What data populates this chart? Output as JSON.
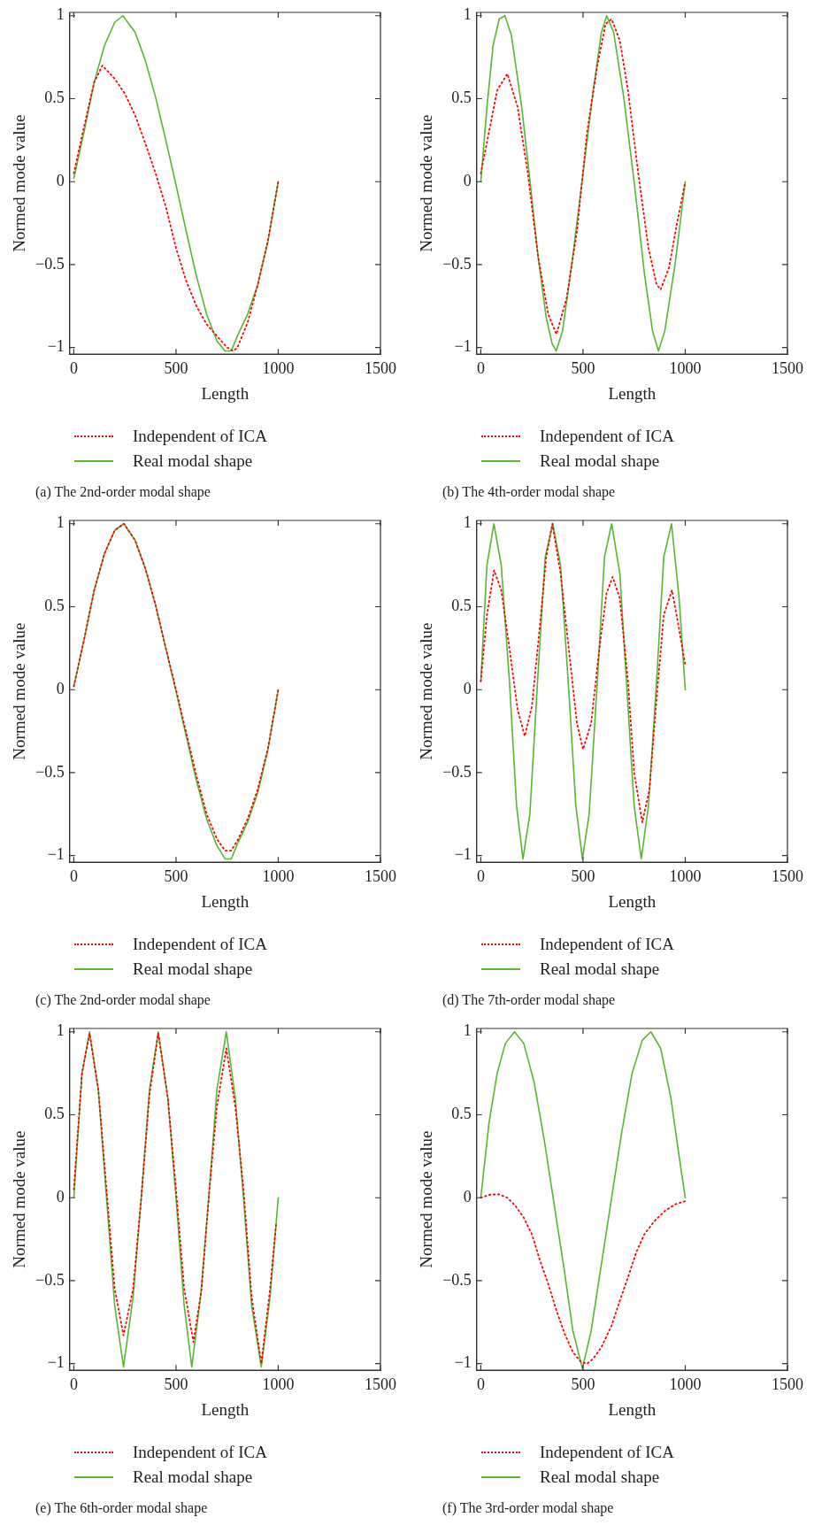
{
  "chart_data": [
    {
      "type": "line",
      "title": "(a) The 2nd-order modal shape",
      "xlabel": "Length",
      "ylabel": "Normed mode value",
      "xlim": [
        -20,
        1500
      ],
      "ylim": [
        -1.04,
        1.02
      ],
      "xticks": [
        0,
        500,
        1000,
        1500
      ],
      "yticks": [
        -1,
        -0.5,
        0,
        0.5,
        1
      ],
      "legend": "bottom",
      "marker": "none",
      "series": [
        {
          "name": "Independent of ICA",
          "color": "#ff0000",
          "line_style": "dotted",
          "x": [
            0,
            50,
            100,
            140,
            200,
            250,
            300,
            350,
            400,
            450,
            500,
            550,
            600,
            650,
            700,
            750,
            780,
            800,
            850,
            900,
            950,
            1000
          ],
          "values": [
            0.05,
            0.33,
            0.6,
            0.7,
            0.62,
            0.53,
            0.4,
            0.23,
            0.05,
            -0.15,
            -0.4,
            -0.6,
            -0.75,
            -0.86,
            -0.93,
            -1.0,
            -1.02,
            -1.0,
            -0.85,
            -0.62,
            -0.35,
            0
          ]
        },
        {
          "name": "Real modal shape",
          "color": "#55b82e",
          "line_style": "solid",
          "x": [
            0,
            50,
            100,
            150,
            200,
            240,
            300,
            350,
            400,
            450,
            500,
            550,
            600,
            650,
            700,
            740,
            770,
            800,
            850,
            900,
            950,
            1000
          ],
          "values": [
            0.02,
            0.3,
            0.6,
            0.82,
            0.96,
            1.0,
            0.9,
            0.73,
            0.51,
            0.25,
            -0.02,
            -0.3,
            -0.57,
            -0.8,
            -0.96,
            -1.02,
            -1.02,
            -0.93,
            -0.8,
            -0.62,
            -0.36,
            0
          ]
        }
      ]
    },
    {
      "type": "line",
      "title": "(b) The 4th-order modal shape",
      "xlabel": "Length",
      "ylabel": "Normed mode value",
      "xlim": [
        -20,
        1500
      ],
      "ylim": [
        -1.04,
        1.02
      ],
      "xticks": [
        0,
        500,
        1000,
        1500
      ],
      "yticks": [
        -1,
        -0.5,
        0,
        0.5,
        1
      ],
      "legend": "bottom",
      "marker": "none",
      "series": [
        {
          "name": "Independent of ICA",
          "color": "#ff0000",
          "line_style": "dotted",
          "x": [
            0,
            40,
            80,
            130,
            180,
            230,
            280,
            330,
            370,
            420,
            470,
            520,
            570,
            610,
            640,
            680,
            720,
            770,
            820,
            860,
            880,
            920,
            960,
            1000
          ],
          "values": [
            0.05,
            0.3,
            0.55,
            0.65,
            0.45,
            0.05,
            -0.45,
            -0.8,
            -0.92,
            -0.7,
            -0.3,
            0.3,
            0.7,
            0.95,
            0.98,
            0.85,
            0.55,
            0.05,
            -0.4,
            -0.62,
            -0.65,
            -0.52,
            -0.25,
            0
          ]
        },
        {
          "name": "Real modal shape",
          "color": "#55b82e",
          "line_style": "solid",
          "x": [
            0,
            30,
            60,
            90,
            118,
            150,
            200,
            241,
            280,
            320,
            350,
            369,
            400,
            450,
            500,
            550,
            590,
            616,
            650,
            700,
            750,
            800,
            840,
            869,
            900,
            950,
            1000
          ],
          "values": [
            0,
            0.45,
            0.82,
            0.98,
            1.0,
            0.88,
            0.45,
            0,
            -0.45,
            -0.82,
            -0.98,
            -1.02,
            -0.9,
            -0.45,
            0.05,
            0.55,
            0.9,
            1.0,
            0.9,
            0.5,
            0,
            -0.55,
            -0.9,
            -1.02,
            -0.9,
            -0.5,
            0
          ]
        }
      ]
    },
    {
      "type": "line",
      "title": "(c) The 2nd-order modal shape",
      "xlabel": "Length",
      "ylabel": "Normed mode value",
      "xlim": [
        -20,
        1500
      ],
      "ylim": [
        -1.04,
        1.02
      ],
      "xticks": [
        0,
        500,
        1000,
        1500
      ],
      "yticks": [
        -1,
        -0.5,
        0,
        0.5,
        1
      ],
      "legend": "bottom",
      "marker": "none",
      "series": [
        {
          "name": "Independent of ICA",
          "color": "#ff0000",
          "line_style": "dotted",
          "x": [
            0,
            50,
            100,
            150,
            200,
            245,
            300,
            350,
            400,
            450,
            500,
            550,
            600,
            650,
            700,
            740,
            770,
            800,
            850,
            900,
            950,
            1000
          ],
          "values": [
            0.02,
            0.3,
            0.6,
            0.82,
            0.96,
            1.0,
            0.9,
            0.73,
            0.51,
            0.25,
            0.0,
            -0.26,
            -0.52,
            -0.75,
            -0.9,
            -0.97,
            -0.97,
            -0.91,
            -0.78,
            -0.6,
            -0.35,
            0
          ]
        },
        {
          "name": "Real modal shape",
          "color": "#55b82e",
          "line_style": "solid",
          "x": [
            0,
            50,
            100,
            150,
            200,
            245,
            300,
            350,
            400,
            450,
            500,
            550,
            600,
            650,
            700,
            740,
            770,
            800,
            850,
            900,
            950,
            1000
          ],
          "values": [
            0.02,
            0.3,
            0.6,
            0.82,
            0.96,
            1.0,
            0.9,
            0.73,
            0.51,
            0.25,
            -0.01,
            -0.28,
            -0.55,
            -0.78,
            -0.94,
            -1.02,
            -1.02,
            -0.93,
            -0.8,
            -0.62,
            -0.36,
            0
          ]
        }
      ]
    },
    {
      "type": "line",
      "title": "(d) The 7th-order modal shape",
      "xlabel": "Length",
      "ylabel": "Normed mode value",
      "xlim": [
        -20,
        1500
      ],
      "ylim": [
        -1.04,
        1.02
      ],
      "xticks": [
        0,
        500,
        1000,
        1500
      ],
      "yticks": [
        -1,
        -0.5,
        0,
        0.5,
        1
      ],
      "legend": "bottom",
      "marker": "none",
      "series": [
        {
          "name": "Independent of ICA",
          "color": "#ff0000",
          "line_style": "dotted",
          "x": [
            0,
            30,
            65,
            100,
            140,
            180,
            215,
            250,
            290,
            320,
            350,
            390,
            430,
            470,
            500,
            540,
            580,
            615,
            645,
            680,
            720,
            750,
            790,
            825,
            860,
            895,
            935,
            965,
            1000
          ],
          "values": [
            0.05,
            0.45,
            0.72,
            0.6,
            0.25,
            -0.12,
            -0.28,
            -0.1,
            0.4,
            0.8,
            1.0,
            0.7,
            0.25,
            -0.2,
            -0.36,
            -0.2,
            0.25,
            0.58,
            0.68,
            0.55,
            0.05,
            -0.5,
            -0.8,
            -0.6,
            -0.05,
            0.45,
            0.6,
            0.4,
            0.15
          ]
        },
        {
          "name": "Real modal shape",
          "color": "#55b82e",
          "line_style": "solid",
          "x": [
            0,
            30,
            64,
            100,
            140,
            175,
            206,
            240,
            280,
            315,
            352,
            390,
            430,
            465,
            497,
            530,
            570,
            605,
            640,
            680,
            715,
            750,
            785,
            820,
            860,
            895,
            933,
            970,
            1000
          ],
          "values": [
            0.05,
            0.75,
            1.0,
            0.75,
            0.05,
            -0.7,
            -1.02,
            -0.75,
            0.1,
            0.8,
            1.0,
            0.75,
            0.0,
            -0.7,
            -1.02,
            -0.75,
            0.05,
            0.8,
            1.0,
            0.7,
            0.0,
            -0.7,
            -1.02,
            -0.7,
            0.05,
            0.8,
            1.0,
            0.55,
            0
          ]
        }
      ]
    },
    {
      "type": "line",
      "title": "(e) The 6th-order modal shape",
      "xlabel": "Length",
      "ylabel": "Normed mode value",
      "xlim": [
        -20,
        1500
      ],
      "ylim": [
        -1.04,
        1.02
      ],
      "xticks": [
        0,
        500,
        1000,
        1500
      ],
      "yticks": [
        -1,
        -0.5,
        0,
        0.5,
        1
      ],
      "legend": "bottom",
      "marker": "none",
      "series": [
        {
          "name": "Independent of ICA",
          "color": "#ff0000",
          "line_style": "dotted",
          "x": [
            0,
            40,
            77,
            120,
            160,
            200,
            243,
            290,
            330,
            370,
            413,
            460,
            500,
            540,
            585,
            625,
            660,
            700,
            746,
            790,
            830,
            870,
            917,
            960,
            990
          ],
          "values": [
            0.05,
            0.75,
            0.99,
            0.65,
            0.05,
            -0.55,
            -0.83,
            -0.55,
            0.0,
            0.62,
            0.99,
            0.6,
            0.05,
            -0.55,
            -0.87,
            -0.55,
            0.0,
            0.55,
            0.9,
            0.55,
            0.05,
            -0.6,
            -1.0,
            -0.55,
            -0.15
          ]
        },
        {
          "name": "Real modal shape",
          "color": "#55b82e",
          "line_style": "solid",
          "x": [
            0,
            40,
            77,
            120,
            160,
            200,
            243,
            290,
            330,
            370,
            413,
            460,
            500,
            540,
            577,
            620,
            660,
            700,
            746,
            790,
            830,
            870,
            917,
            960,
            1000
          ],
          "values": [
            0,
            0.75,
            1.0,
            0.65,
            0.0,
            -0.65,
            -1.02,
            -0.6,
            0.0,
            0.65,
            1.0,
            0.6,
            0.0,
            -0.65,
            -1.02,
            -0.6,
            0.0,
            0.65,
            1.0,
            0.6,
            0.0,
            -0.65,
            -1.02,
            -0.6,
            0
          ]
        }
      ]
    },
    {
      "type": "line",
      "title": "(f) The 3rd-order modal shape",
      "xlabel": "Length",
      "ylabel": "Normed mode value",
      "xlim": [
        -20,
        1500
      ],
      "ylim": [
        -1.04,
        1.02
      ],
      "xticks": [
        0,
        500,
        1000,
        1500
      ],
      "yticks": [
        -1,
        -0.5,
        0,
        0.5,
        1
      ],
      "legend": "bottom",
      "marker": "none",
      "series": [
        {
          "name": "Independent of ICA",
          "color": "#ff0000",
          "line_style": "dotted",
          "x": [
            0,
            50,
            90,
            130,
            170,
            210,
            250,
            290,
            330,
            370,
            410,
            450,
            490,
            520,
            550,
            590,
            640,
            680,
            720,
            760,
            800,
            850,
            900,
            950,
            1000
          ],
          "values": [
            0.0,
            0.02,
            0.02,
            0.0,
            -0.05,
            -0.12,
            -0.22,
            -0.38,
            -0.52,
            -0.68,
            -0.82,
            -0.93,
            -0.99,
            -1.0,
            -0.97,
            -0.9,
            -0.77,
            -0.62,
            -0.48,
            -0.33,
            -0.22,
            -0.14,
            -0.08,
            -0.04,
            -0.02
          ]
        },
        {
          "name": "Real modal shape",
          "color": "#55b82e",
          "line_style": "solid",
          "x": [
            0,
            40,
            80,
            120,
            165,
            210,
            260,
            310,
            360,
            410,
            450,
            497,
            540,
            590,
            640,
            690,
            740,
            790,
            832,
            880,
            930,
            970,
            1000
          ],
          "values": [
            0,
            0.45,
            0.75,
            0.93,
            1.0,
            0.93,
            0.7,
            0.35,
            -0.05,
            -0.45,
            -0.8,
            -1.03,
            -0.8,
            -0.4,
            0.0,
            0.4,
            0.75,
            0.95,
            1.0,
            0.9,
            0.6,
            0.25,
            0
          ]
        }
      ]
    }
  ]
}
